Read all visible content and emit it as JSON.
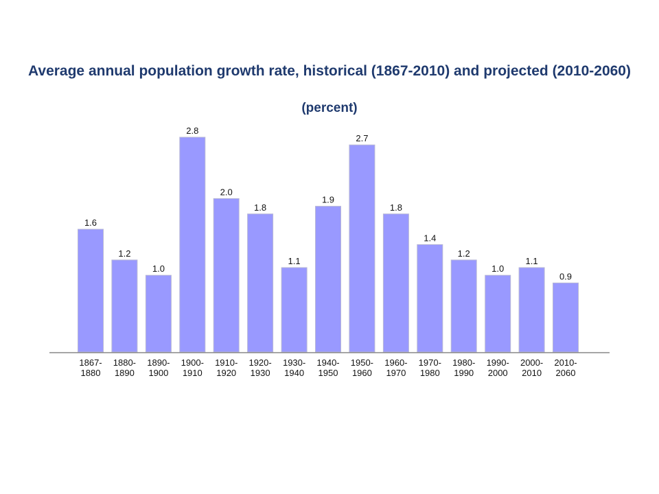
{
  "chart_data": {
    "type": "bar",
    "title": "Average annual population growth rate, historical (1867-2010) and projected (2010-2060)",
    "subtitle": "(percent)",
    "categories": [
      [
        "1867-",
        "1880"
      ],
      [
        "1880-",
        "1890"
      ],
      [
        "1890-",
        "1900"
      ],
      [
        "1900-",
        "1910"
      ],
      [
        "1910-",
        "1920"
      ],
      [
        "1920-",
        "1930"
      ],
      [
        "1930-",
        "1940"
      ],
      [
        "1940-",
        "1950"
      ],
      [
        "1950-",
        "1960"
      ],
      [
        "1960-",
        "1970"
      ],
      [
        "1970-",
        "1980"
      ],
      [
        "1980-",
        "1990"
      ],
      [
        "1990-",
        "2000"
      ],
      [
        "2000-",
        "2010"
      ],
      [
        "2010-",
        "2060"
      ]
    ],
    "values": [
      1.6,
      1.2,
      1.0,
      2.8,
      2.0,
      1.8,
      1.1,
      1.9,
      2.7,
      1.8,
      1.4,
      1.2,
      1.0,
      1.1,
      0.9
    ],
    "value_labels": [
      "1.6",
      "1.2",
      "1.0",
      "2.8",
      "2.0",
      "1.8",
      "1.1",
      "1.9",
      "2.7",
      "1.8",
      "1.4",
      "1.2",
      "1.0",
      "1.1",
      "0.9"
    ],
    "xlabel": "",
    "ylabel": "",
    "ylim": [
      0,
      2.8
    ],
    "grid": false,
    "legend": "none",
    "bar_color": "#9999ff",
    "title_color": "#1f3a6e"
  }
}
